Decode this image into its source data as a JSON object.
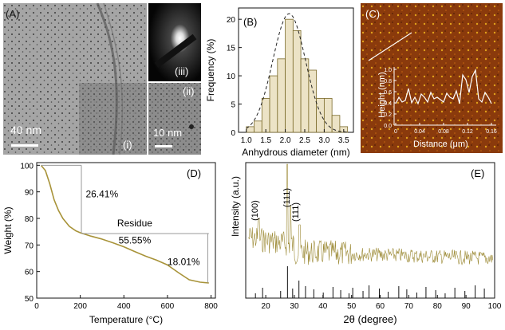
{
  "panels": {
    "A": {
      "label": "(A)",
      "scale_main": "40 nm",
      "scale_inset": "10 nm",
      "sub_i": "(i)",
      "sub_ii": "(ii)",
      "sub_iii": "(iii)"
    },
    "C": {
      "label": "(C)",
      "ylabel": "Height (nm)",
      "xlabel": "Distance (μm)",
      "yticks": [
        "0.0",
        "0.2",
        "0.4",
        "0.6",
        "0.8",
        "1.0"
      ],
      "xticks": [
        "0",
        "0.04",
        "0.08",
        "0.12",
        "0.16"
      ]
    }
  },
  "chart_data": [
    {
      "panel": "(B)",
      "type": "bar",
      "xlabel": "Anhydrous diameter (nm)",
      "ylabel": "Frequency (%)",
      "xticks": [
        "1.0",
        "1.5",
        "2.0",
        "2.5",
        "3.0",
        "3.5"
      ],
      "yticks": [
        "0",
        "5",
        "10",
        "15",
        "20"
      ],
      "xlim": [
        0.8,
        3.75
      ],
      "ylim": [
        0,
        22
      ],
      "bins": [
        1.0,
        1.2,
        1.4,
        1.6,
        1.8,
        2.0,
        2.2,
        2.4,
        2.6,
        2.8,
        3.0,
        3.2,
        3.4
      ],
      "values": [
        1,
        2,
        6,
        10,
        13,
        20,
        18,
        13,
        11,
        6,
        6,
        3,
        1
      ],
      "fit": "gaussian",
      "bar_fill": "#ece3c6",
      "bar_stroke": "#7a6a2a"
    },
    {
      "panel": "(D)",
      "type": "line",
      "xlabel": "Temperature (°C)",
      "ylabel": "Weight (%)",
      "xticks": [
        "0",
        "200",
        "400",
        "600",
        "800"
      ],
      "yticks": [
        "50",
        "60",
        "70",
        "80",
        "90",
        "100"
      ],
      "xlim": [
        0,
        820
      ],
      "ylim": [
        50,
        101
      ],
      "x": [
        20,
        40,
        60,
        80,
        100,
        120,
        150,
        180,
        200,
        250,
        300,
        350,
        400,
        450,
        500,
        550,
        600,
        650,
        700,
        750,
        790
      ],
      "y": [
        100,
        98,
        93,
        87,
        83,
        80,
        77,
        75.3,
        74.6,
        73.3,
        72.2,
        70.8,
        69.3,
        67.5,
        65.8,
        64.3,
        62.5,
        59.6,
        56.9,
        56.0,
        55.7
      ],
      "color": "#a89339",
      "annotations": [
        "26.41%",
        "Residue",
        "55.55%",
        "18.01%"
      ]
    },
    {
      "panel": "(E)",
      "type": "line",
      "xlabel": "2θ (degree)",
      "ylabel": "Intensity (a.u.)",
      "xticks": [
        "20",
        "30",
        "40",
        "50",
        "60",
        "70",
        "80",
        "90",
        "100"
      ],
      "xlim": [
        13,
        100
      ],
      "peaks": [
        "(100)",
        "(111)",
        "(111)"
      ],
      "color": "#9c8a35",
      "ref_color": "#111111"
    }
  ]
}
